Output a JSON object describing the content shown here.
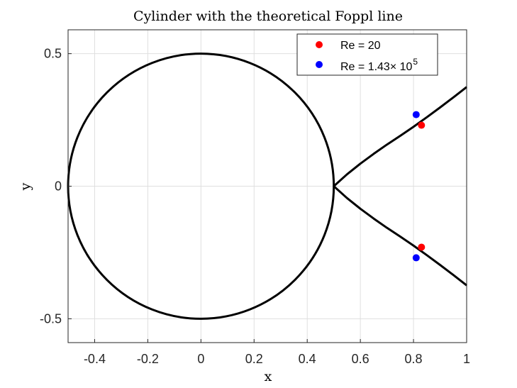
{
  "chart_data": {
    "type": "scatter",
    "title": "Cylinder with the theoretical Foppl line",
    "xlabel": "x",
    "ylabel": "y",
    "xlim": [
      -0.5,
      1
    ],
    "ylim": [
      -0.59,
      0.59
    ],
    "x_ticks": [
      -0.4,
      -0.2,
      0,
      0.2,
      0.4,
      0.6,
      0.8,
      1
    ],
    "x_tick_labels": [
      "-0.4",
      "-0.2",
      "0",
      "0.2",
      "0.4",
      "0.6",
      "0.8",
      "1"
    ],
    "y_ticks": [
      0.5,
      0,
      -0.5
    ],
    "y_tick_labels": [
      "0.5",
      "0",
      "-0.5"
    ],
    "grid": true,
    "legend_position": "top-right",
    "curves": {
      "cylinder": {
        "center": [
          0,
          0
        ],
        "radius": 0.5,
        "color": "#000000"
      },
      "foppl_line": {
        "color": "#000000",
        "upper": {
          "x": [
            0.5,
            0.55,
            0.6,
            0.65,
            0.7,
            0.75,
            0.8,
            0.85,
            0.9,
            0.95,
            1.0
          ],
          "y": [
            0.0,
            0.045,
            0.085,
            0.122,
            0.157,
            0.19,
            0.224,
            0.26,
            0.297,
            0.335,
            0.374
          ]
        },
        "lower": {
          "x": [
            0.5,
            0.55,
            0.6,
            0.65,
            0.7,
            0.75,
            0.8,
            0.85,
            0.9,
            0.95,
            1.0
          ],
          "y": [
            0.0,
            -0.045,
            -0.085,
            -0.122,
            -0.157,
            -0.19,
            -0.224,
            -0.26,
            -0.297,
            -0.335,
            -0.374
          ]
        }
      }
    },
    "series": [
      {
        "name": "Re = 20",
        "color": "#ff0000",
        "x": [
          0.83,
          0.83
        ],
        "y": [
          0.23,
          -0.23
        ]
      },
      {
        "name": "Re = 1.43× 10",
        "name_superscript": "5",
        "color": "#0000ff",
        "x": [
          0.81,
          0.81
        ],
        "y": [
          0.27,
          -0.27
        ]
      }
    ]
  }
}
